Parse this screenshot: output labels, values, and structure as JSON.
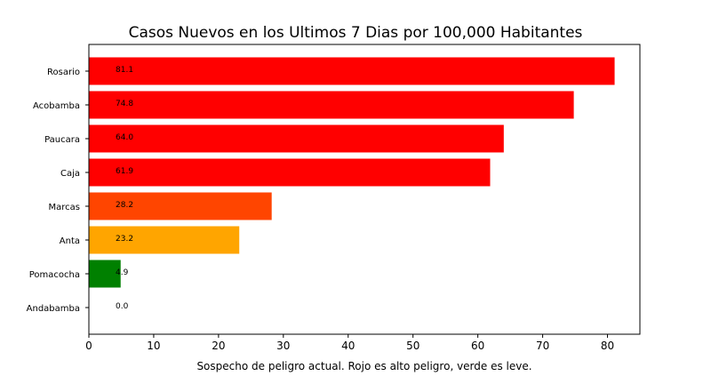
{
  "chart_data": {
    "type": "bar",
    "orientation": "horizontal",
    "title": "Casos Nuevos en los Ultimos 7 Dias por 100,000 Habitantes",
    "xlabel": "Sospecho de peligro actual. Rojo es alto peligro, verde es leve.",
    "ylabel": "",
    "xlim": [
      0,
      85
    ],
    "xticks": [
      0,
      10,
      20,
      30,
      40,
      50,
      60,
      70,
      80
    ],
    "grid": false,
    "categories": [
      "Rosario",
      "Acobamba",
      "Paucara",
      "Caja",
      "Marcas",
      "Anta",
      "Pomacocha",
      "Andabamba"
    ],
    "values": [
      81.1,
      74.8,
      64.0,
      61.9,
      28.2,
      23.2,
      4.9,
      0.0
    ],
    "value_labels": [
      "81.1",
      "74.8",
      "64.0",
      "61.9",
      "28.2",
      "23.2",
      "4.9",
      "0.0"
    ],
    "colors": [
      "#ff0000",
      "#ff0000",
      "#ff0000",
      "#ff0000",
      "#ff4500",
      "#ffa500",
      "#008000",
      "#008000"
    ]
  }
}
